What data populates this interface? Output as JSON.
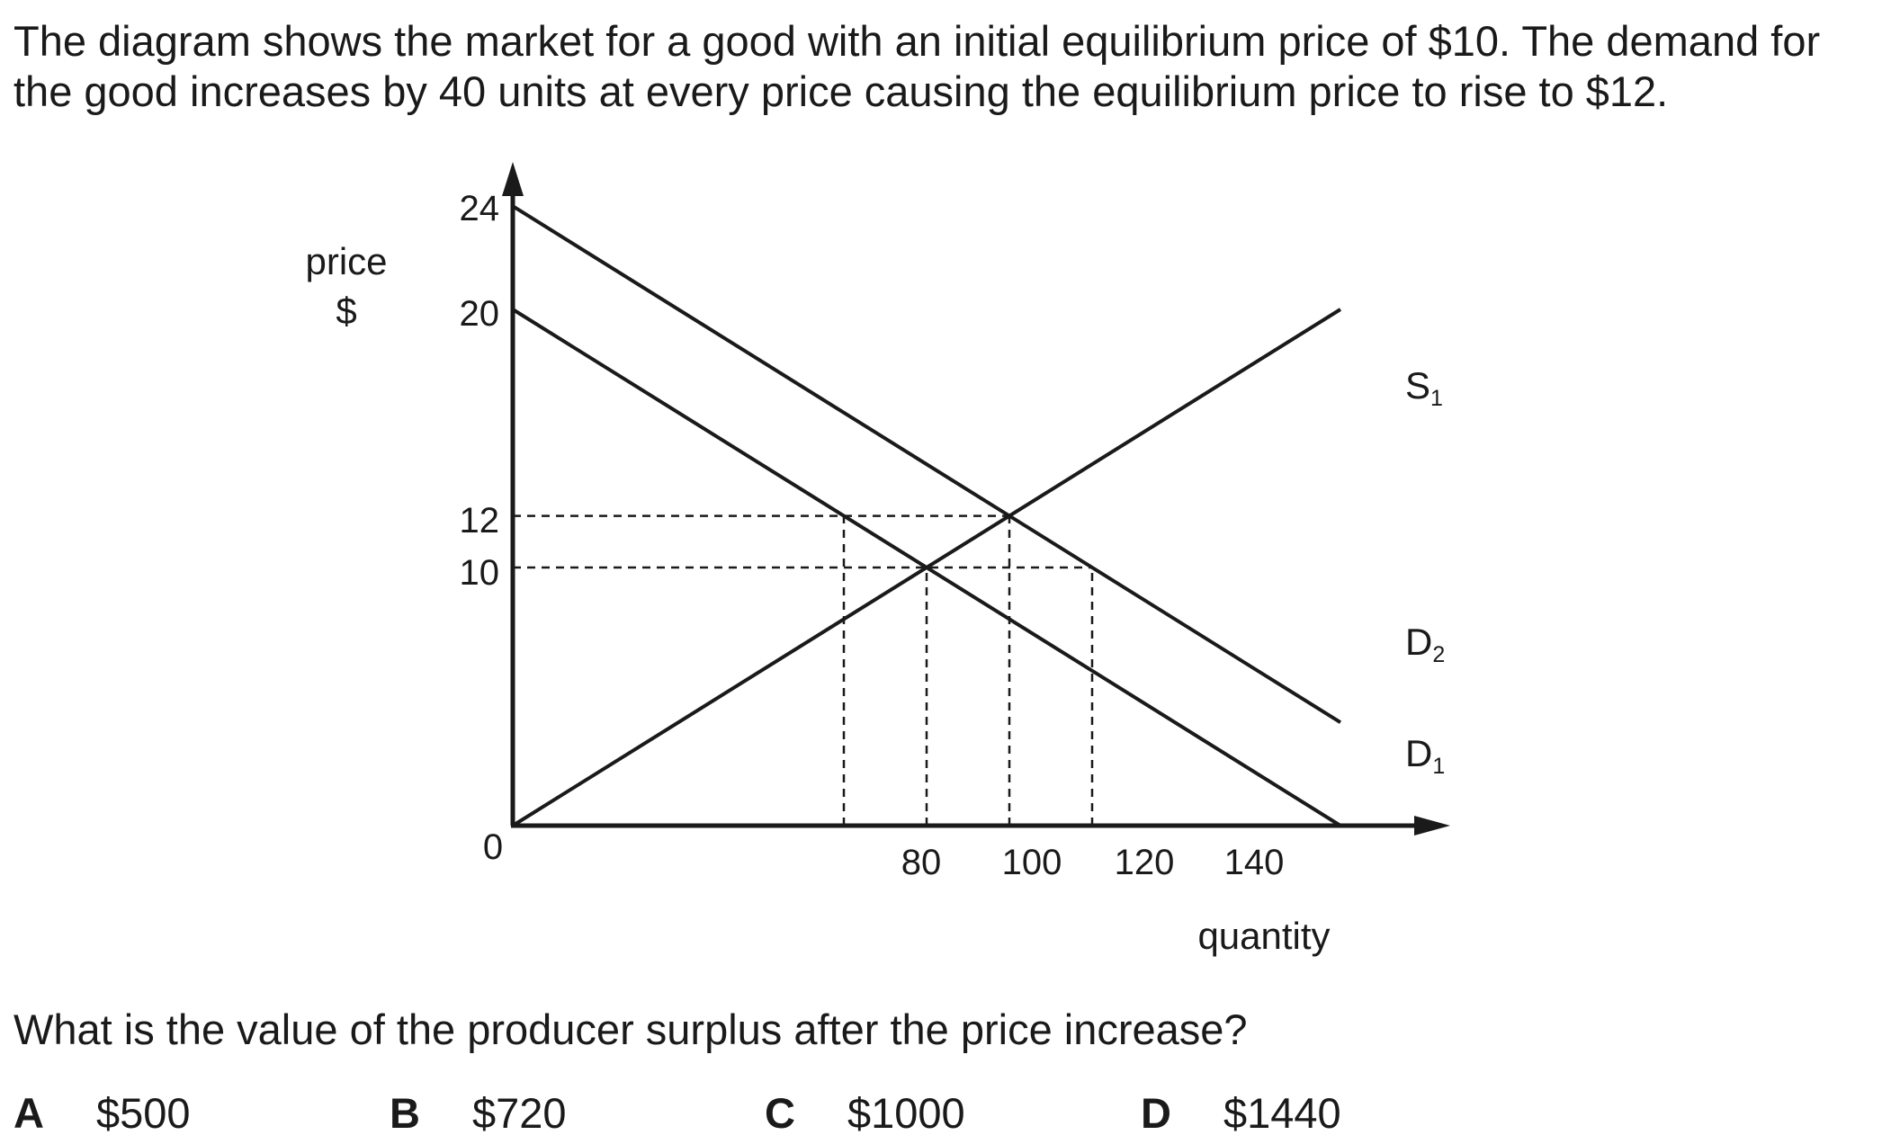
{
  "question": {
    "intro": "The diagram shows the market for a good with an initial equilibrium price of $10. The demand for the good increases by 40 units at every price causing the equilibrium price to rise to $12.",
    "prompt": "What is the value of the producer surplus after the price increase?",
    "options": [
      {
        "letter": "A",
        "value": "$500"
      },
      {
        "letter": "B",
        "value": "$720"
      },
      {
        "letter": "C",
        "value": "$1000"
      },
      {
        "letter": "D",
        "value": "$1440"
      }
    ]
  },
  "diagram": {
    "y_label_line1": "price",
    "y_label_line2": "$",
    "x_label": "quantity",
    "origin_label": "0",
    "y_ticks": [
      "24",
      "20",
      "12",
      "10"
    ],
    "x_ticks": [
      "80",
      "100",
      "120",
      "140"
    ],
    "curve_labels": {
      "s1": {
        "letter": "S",
        "sub": "1"
      },
      "d2": {
        "letter": "D",
        "sub": "2"
      },
      "d1": {
        "letter": "D",
        "sub": "1"
      }
    },
    "colors": {
      "line": "#1a1a1a"
    }
  },
  "chart_data": {
    "type": "line",
    "xlabel": "quantity",
    "ylabel": "price $",
    "x_ticks": [
      80,
      100,
      120,
      140
    ],
    "y_ticks": [
      10,
      12,
      20,
      24
    ],
    "series": [
      {
        "name": "S1",
        "points": [
          [
            0,
            0
          ],
          [
            200,
            20
          ]
        ]
      },
      {
        "name": "D1",
        "points": [
          [
            0,
            20
          ],
          [
            200,
            0
          ]
        ]
      },
      {
        "name": "D2",
        "points": [
          [
            0,
            24
          ],
          [
            200,
            4
          ]
        ]
      }
    ],
    "reference_lines": [
      {
        "from": [
          0,
          12
        ],
        "to": [
          120,
          12
        ]
      },
      {
        "from": [
          0,
          10
        ],
        "to": [
          140,
          10
        ]
      },
      {
        "from": [
          80,
          0
        ],
        "to": [
          80,
          12
        ]
      },
      {
        "from": [
          100,
          0
        ],
        "to": [
          100,
          10
        ]
      },
      {
        "from": [
          120,
          0
        ],
        "to": [
          120,
          12
        ]
      },
      {
        "from": [
          140,
          0
        ],
        "to": [
          140,
          10
        ]
      }
    ]
  }
}
